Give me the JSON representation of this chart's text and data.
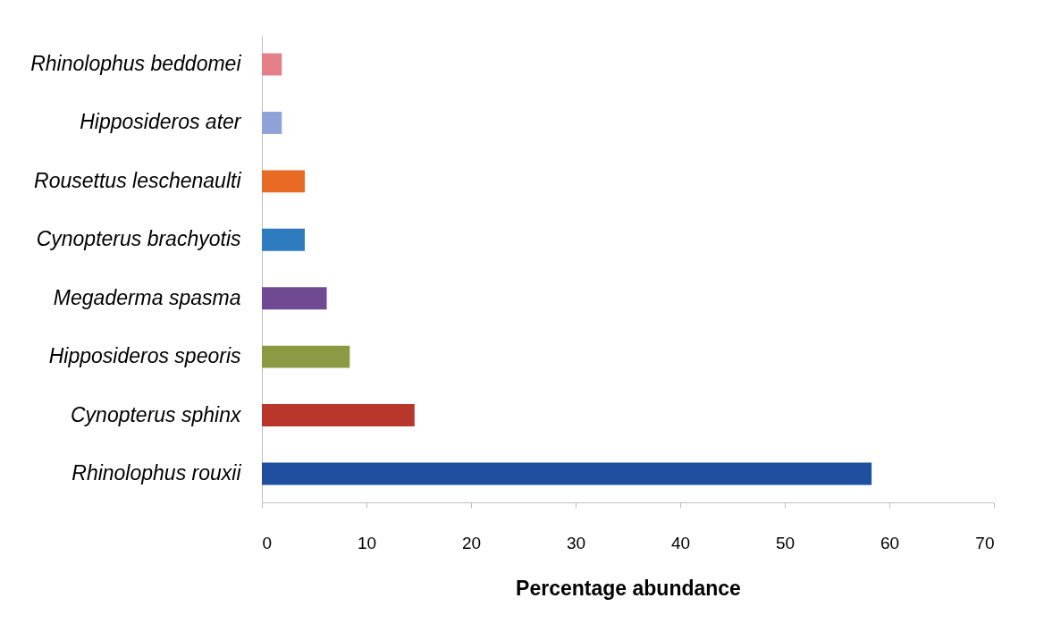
{
  "chart_data": {
    "type": "bar",
    "orientation": "horizontal",
    "xlabel": "Percentage abundance",
    "categories": [
      "Rhinolophus beddomei",
      "Hipposideros ater",
      "Rousettus leschenaulti",
      "Cynopterus brachyotis",
      "Megaderma spasma",
      "Hipposideros speoris",
      "Cynopterus sphinx",
      "Rhinolophus rouxii"
    ],
    "values": [
      1.9,
      1.9,
      4.1,
      4.1,
      6.2,
      8.4,
      14.6,
      58.3
    ],
    "colors": [
      "#e5808b",
      "#8fa2d8",
      "#e96a25",
      "#2f7bbf",
      "#6f4a93",
      "#8c9a43",
      "#b9372a",
      "#1f4f9f"
    ],
    "xlim": [
      0,
      70
    ],
    "xticks": [
      0,
      10,
      20,
      30,
      40,
      50,
      60,
      70
    ]
  }
}
